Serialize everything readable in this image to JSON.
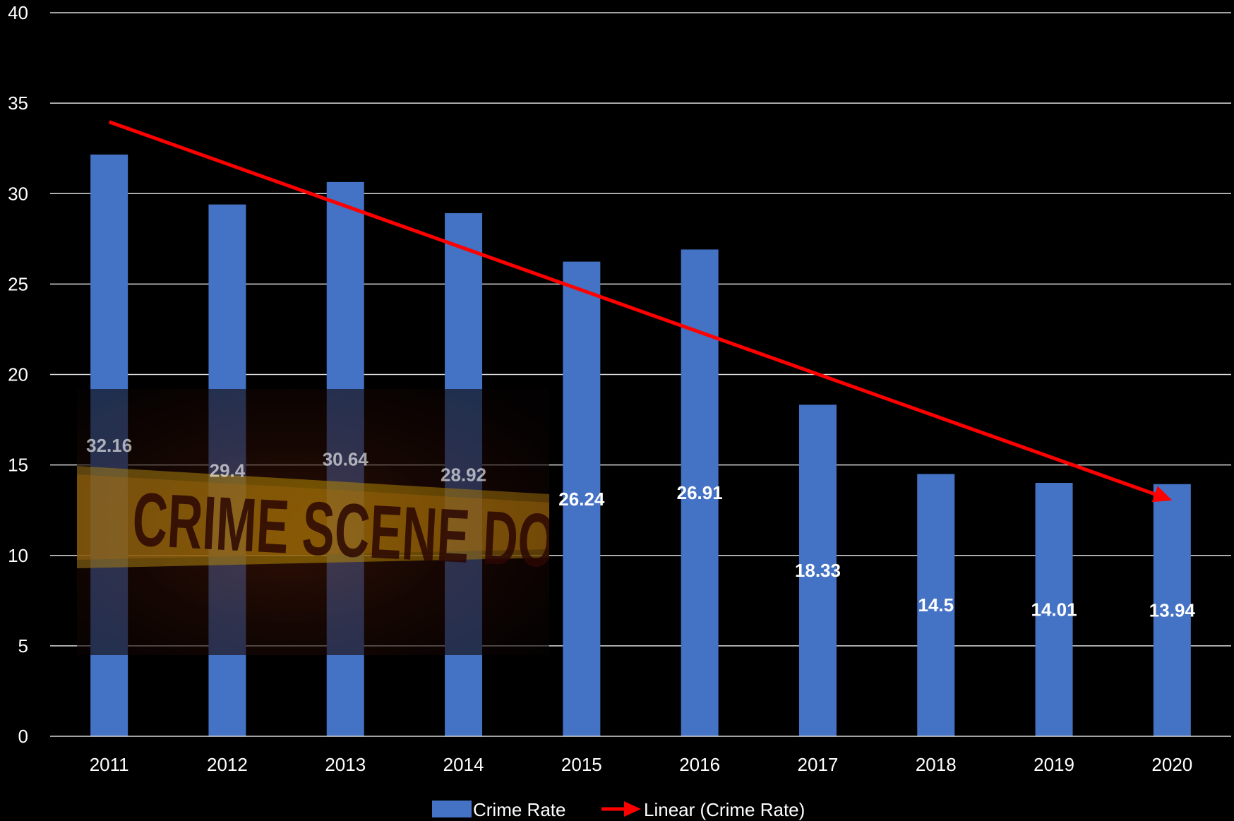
{
  "chart_data": {
    "type": "bar",
    "categories": [
      "2011",
      "2012",
      "2013",
      "2014",
      "2015",
      "2016",
      "2017",
      "2018",
      "2019",
      "2020"
    ],
    "series": [
      {
        "name": "Crime Rate",
        "values": [
          32.16,
          29.4,
          30.64,
          28.92,
          26.24,
          26.91,
          18.33,
          14.5,
          14.01,
          13.94
        ],
        "color": "#4472C4"
      }
    ],
    "trendline": {
      "name": "Linear (Crime Rate)",
      "type": "linear",
      "color": "#FF0000"
    },
    "ylim": [
      0,
      40
    ],
    "yticks": [
      0,
      5,
      10,
      15,
      20,
      25,
      30,
      35,
      40
    ],
    "grid": true,
    "legend_position": "bottom",
    "title": "",
    "xlabel": "",
    "ylabel": ""
  },
  "overlay_image": {
    "description_icon": "crime-scene-tape-photo",
    "tape_text": "CRIME SCENE DO NOT CROSS"
  }
}
